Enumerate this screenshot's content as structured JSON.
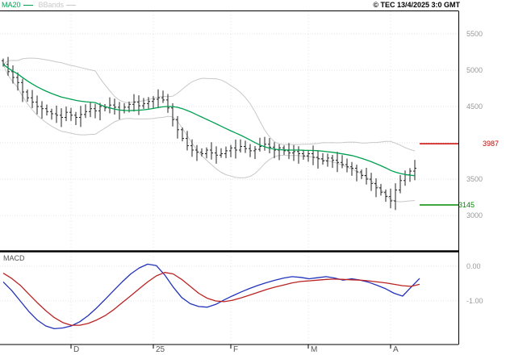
{
  "header": {
    "ma20_label": "MA20",
    "bbands_label": "BBands",
    "copyright": "© TEC 13/4/2025 3:0 GMT"
  },
  "macd_panel": {
    "label": "MACD",
    "axis_ticks": [
      {
        "text": "0.00",
        "value": 0
      },
      {
        "text": "-1.00",
        "value": -1
      }
    ]
  },
  "price_axis": {
    "ticks": [
      {
        "text": "5500",
        "value": 5500
      },
      {
        "text": "5000",
        "value": 5000
      },
      {
        "text": "4500",
        "value": 4500
      },
      {
        "text": "3500",
        "value": 3500
      },
      {
        "text": "3000",
        "value": 3000
      }
    ],
    "grid_values": [
      5500,
      5000,
      4500,
      4000,
      3500,
      3000
    ],
    "red_level": {
      "text": "3987",
      "value": 3987
    },
    "green_level": {
      "text": "3145",
      "value": 3145
    }
  },
  "x_axis": {
    "ticks": [
      {
        "label": "D",
        "index": 14
      },
      {
        "label": "25",
        "index": 31
      },
      {
        "label": "F",
        "index": 47
      },
      {
        "label": "M",
        "index": 63
      },
      {
        "label": "A",
        "index": 80
      }
    ]
  },
  "colors": {
    "ma20": "#00a050",
    "bbands": "#c8c8c8",
    "bars": "#222222",
    "red_level": "#cc0000",
    "green_level": "#008800",
    "macd_line": "#2233bb",
    "macd_signal": "#bb2222",
    "grid": "#e3e3e3",
    "axis_text": "#999999",
    "month_text": "#555555"
  },
  "chart_data": [
    {
      "type": "ohlc",
      "name": "price",
      "ylim": [
        3000,
        5500
      ],
      "yticks": [
        3000,
        3500,
        4000,
        4500,
        5000,
        5500
      ],
      "overlays": [
        {
          "name": "MA20",
          "period": 20
        },
        {
          "name": "BollingerBands",
          "period": 20,
          "stddev": 2
        }
      ],
      "levels": [
        {
          "value": 3987,
          "label": "3987",
          "color": "red"
        },
        {
          "value": 3145,
          "label": "3145",
          "color": "green"
        }
      ],
      "closes": [
        5080,
        4980,
        4900,
        4830,
        4700,
        4620,
        4560,
        4500,
        4470,
        4430,
        4400,
        4380,
        4350,
        4420,
        4380,
        4350,
        4390,
        4430,
        4470,
        4440,
        4500,
        4480,
        4520,
        4490,
        4450,
        4490,
        4530,
        4560,
        4510,
        4540,
        4570,
        4600,
        4620,
        4590,
        4480,
        4320,
        4180,
        4060,
        3960,
        3900,
        3870,
        3850,
        3900,
        3860,
        3830,
        3850,
        3890,
        3930,
        3900,
        3950,
        3920,
        3890,
        3910,
        3950,
        3980,
        3940,
        3900,
        3930,
        3890,
        3860,
        3880,
        3850,
        3820,
        3850,
        3800,
        3780,
        3750,
        3790,
        3760,
        3730,
        3700,
        3670,
        3650,
        3600,
        3550,
        3500,
        3440,
        3380,
        3320,
        3260,
        3200,
        3350,
        3480,
        3560,
        3610,
        3650
      ]
    },
    {
      "type": "line",
      "name": "MACD",
      "yticks": [
        0,
        -1
      ],
      "series": [
        {
          "name": "macd",
          "values": [
            -0.45,
            -0.7,
            -1.0,
            -1.3,
            -1.55,
            -1.72,
            -1.8,
            -1.78,
            -1.72,
            -1.6,
            -1.42,
            -1.2,
            -0.95,
            -0.7,
            -0.45,
            -0.22,
            -0.05,
            0.06,
            0.02,
            -0.25,
            -0.6,
            -0.9,
            -1.08,
            -1.16,
            -1.18,
            -1.1,
            -0.97,
            -0.85,
            -0.74,
            -0.64,
            -0.55,
            -0.47,
            -0.4,
            -0.34,
            -0.3,
            -0.32,
            -0.36,
            -0.33,
            -0.3,
            -0.34,
            -0.4,
            -0.36,
            -0.4,
            -0.46,
            -0.55,
            -0.65,
            -0.78,
            -0.86,
            -0.6,
            -0.35
          ]
        },
        {
          "name": "signal",
          "values": [
            -0.2,
            -0.35,
            -0.55,
            -0.8,
            -1.05,
            -1.28,
            -1.48,
            -1.62,
            -1.7,
            -1.7,
            -1.65,
            -1.55,
            -1.42,
            -1.25,
            -1.05,
            -0.85,
            -0.65,
            -0.45,
            -0.28,
            -0.18,
            -0.22,
            -0.38,
            -0.58,
            -0.78,
            -0.92,
            -1.0,
            -1.02,
            -0.98,
            -0.91,
            -0.83,
            -0.75,
            -0.67,
            -0.6,
            -0.54,
            -0.48,
            -0.44,
            -0.42,
            -0.4,
            -0.38,
            -0.37,
            -0.38,
            -0.39,
            -0.4,
            -0.42,
            -0.45,
            -0.48,
            -0.52,
            -0.56,
            -0.58,
            -0.52
          ]
        }
      ]
    }
  ]
}
